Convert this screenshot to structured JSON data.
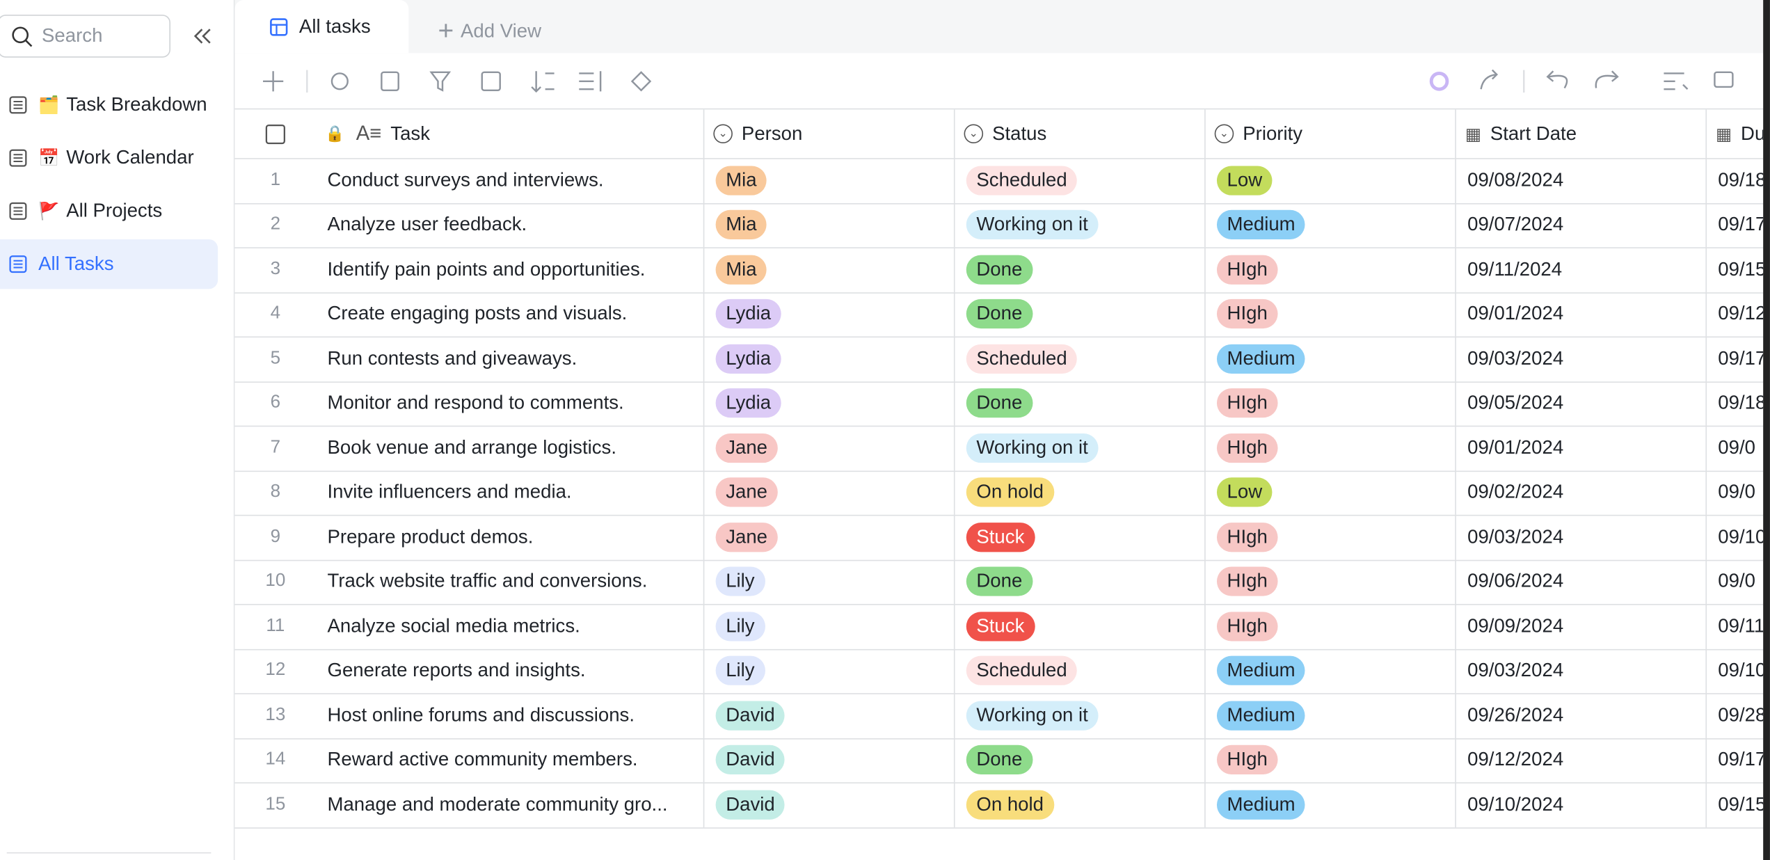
{
  "sidebar": {
    "search_placeholder": "Search",
    "items": [
      {
        "emoji": "🗂️",
        "label": "Task Breakdown"
      },
      {
        "emoji": "📅",
        "label": "Work Calendar"
      },
      {
        "emoji": "🚩",
        "label": "All Projects"
      },
      {
        "emoji": "",
        "label": "All Tasks",
        "active": true
      }
    ]
  },
  "tabs": {
    "active": "All tasks",
    "add": "Add View"
  },
  "table": {
    "columns": [
      "Task",
      "Person",
      "Status",
      "Priority",
      "Start Date",
      "Du"
    ],
    "rows": [
      [
        "1",
        "Conduct surveys and interviews.",
        "Mia",
        "Scheduled",
        "Low",
        "09/08/2024",
        "09/18"
      ],
      [
        "2",
        "Analyze user feedback.",
        "Mia",
        "Working on it",
        "Medium",
        "09/07/2024",
        "09/17"
      ],
      [
        "3",
        "Identify pain points and opportunities.",
        "Mia",
        "Done",
        "HIgh",
        "09/11/2024",
        "09/15"
      ],
      [
        "4",
        "Create engaging posts and visuals.",
        "Lydia",
        "Done",
        "HIgh",
        "09/01/2024",
        "09/12"
      ],
      [
        "5",
        "Run contests and giveaways.",
        "Lydia",
        "Scheduled",
        "Medium",
        "09/03/2024",
        "09/17"
      ],
      [
        "6",
        "Monitor and respond to comments.",
        "Lydia",
        "Done",
        "HIgh",
        "09/05/2024",
        "09/18"
      ],
      [
        "7",
        "Book venue and arrange logistics.",
        "Jane",
        "Working on it",
        "HIgh",
        "09/01/2024",
        "09/0"
      ],
      [
        "8",
        "Invite influencers and media.",
        "Jane",
        "On hold",
        "Low",
        "09/02/2024",
        "09/0"
      ],
      [
        "9",
        "Prepare product demos.",
        "Jane",
        "Stuck",
        "HIgh",
        "09/03/2024",
        "09/10"
      ],
      [
        "10",
        "Track website traffic and conversions.",
        "Lily",
        "Done",
        "HIgh",
        "09/06/2024",
        "09/0"
      ],
      [
        "11",
        "Analyze social media metrics.",
        "Lily",
        "Stuck",
        "HIgh",
        "09/09/2024",
        "09/11"
      ],
      [
        "12",
        "Generate reports and insights.",
        "Lily",
        "Scheduled",
        "Medium",
        "09/03/2024",
        "09/10"
      ],
      [
        "13",
        "Host online forums and discussions.",
        "David",
        "Working on it",
        "Medium",
        "09/26/2024",
        "09/28"
      ],
      [
        "14",
        "Reward active community members.",
        "David",
        "Done",
        "HIgh",
        "09/12/2024",
        "09/17"
      ],
      [
        "15",
        "Manage and moderate community gro...",
        "David",
        "On hold",
        "Medium",
        "09/10/2024",
        "09/15"
      ]
    ]
  }
}
